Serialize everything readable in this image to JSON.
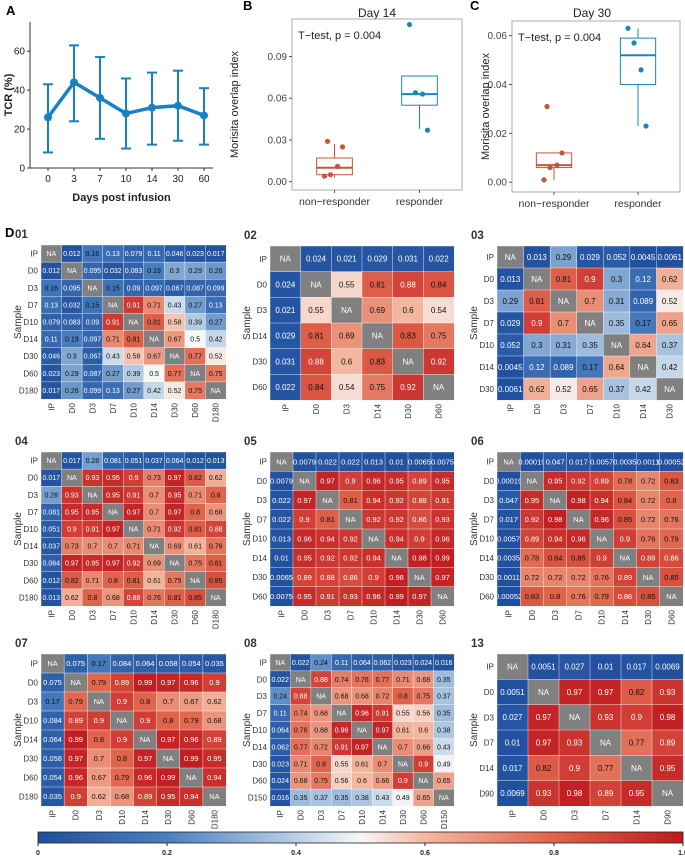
{
  "panel_letters": {
    "a": "A",
    "b": "B",
    "c": "C",
    "d": "D"
  },
  "chart_data": [
    {
      "id": "tcr",
      "type": "line",
      "title": "",
      "xlabel": "Days post infusion",
      "ylabel": "TCR (%)",
      "categories": [
        "0",
        "3",
        "7",
        "10",
        "14",
        "30",
        "60"
      ],
      "values": [
        26,
        44,
        36,
        28,
        31,
        32,
        27
      ],
      "error_low": [
        8,
        24,
        15,
        10,
        12,
        14,
        12
      ],
      "error_high": [
        43,
        63,
        57,
        46,
        49,
        50,
        41
      ],
      "ylim": [
        0,
        75
      ],
      "yticks": [
        "0",
        "20",
        "40",
        "60"
      ],
      "color": "#1a80c4"
    },
    {
      "id": "day14",
      "type": "box",
      "title": "Day 14",
      "ylabel": "Morisita overlap index",
      "annotation": "T−test, p = 0.004",
      "categories": [
        "non−responder",
        "responder"
      ],
      "yticks": [
        "0.00",
        "0.03",
        "0.06",
        "0.09"
      ],
      "ylim": [
        -0.006,
        0.117
      ],
      "groups": [
        {
          "name": "non−responder",
          "color": "#c8553b",
          "q1": 0.005,
          "median": 0.01,
          "q3": 0.017,
          "whisker_low": 0.003,
          "whisker_high": 0.027,
          "points": [
            0.004,
            0.005,
            0.011,
            0.025,
            0.029
          ]
        },
        {
          "name": "responder",
          "color": "#1b86b8",
          "q1": 0.055,
          "median": 0.063,
          "q3": 0.076,
          "whisker_low": 0.038,
          "whisker_high": 0.076,
          "points": [
            0.113,
            0.064,
            0.063,
            0.037
          ]
        }
      ]
    },
    {
      "id": "day30",
      "type": "box",
      "title": "Day 30",
      "ylabel": "Morisita overlap index",
      "annotation": "T−test, p = 0.004",
      "categories": [
        "non−responder",
        "responder"
      ],
      "yticks": [
        "0.00",
        "0.02",
        "0.04",
        "0.06"
      ],
      "ylim": [
        -0.004,
        0.066
      ],
      "groups": [
        {
          "name": "non−responder",
          "color": "#c8553b",
          "q1": 0.006,
          "median": 0.007,
          "q3": 0.012,
          "whisker_low": 0.001,
          "whisker_high": 0.012,
          "points": [
            0.001,
            0.006,
            0.007,
            0.012,
            0.031
          ]
        },
        {
          "name": "responder",
          "color": "#1b86b8",
          "q1": 0.04,
          "median": 0.052,
          "q3": 0.059,
          "whisker_low": 0.023,
          "whisker_high": 0.063,
          "points": [
            0.063,
            0.057,
            0.046,
            0.023
          ]
        }
      ]
    },
    {
      "id": "hm01",
      "type": "heatmap",
      "title": "01",
      "ylabel": "Sample",
      "labels": [
        "IP",
        "D0",
        "D3",
        "D7",
        "D10",
        "D14",
        "D30",
        "D60",
        "D180"
      ],
      "cells": [
        [
          "NA",
          "0.012",
          "0.16",
          "0.13",
          "0.079",
          "0.11",
          "0.046",
          "0.023",
          "0.017"
        ],
        [
          "0.012",
          "NA",
          "0.095",
          "0.032",
          "0.083",
          "0.19",
          "0.3",
          "0.29",
          "0.26"
        ],
        [
          "0.16",
          "0.095",
          "NA",
          "0.15",
          "0.09",
          "0.097",
          "0.067",
          "0.087",
          "0.099"
        ],
        [
          "0.13",
          "0.032",
          "0.15",
          "NA",
          "0.91",
          "0.71",
          "0.43",
          "0.27",
          "0.13"
        ],
        [
          "0.079",
          "0.083",
          "0.09",
          "0.91",
          "NA",
          "0.81",
          "0.58",
          "0.39",
          "0.27"
        ],
        [
          "0.11",
          "0.19",
          "0.097",
          "0.71",
          "0.81",
          "NA",
          "0.67",
          "0.5",
          "0.42"
        ],
        [
          "0.046",
          "0.3",
          "0.067",
          "0.43",
          "0.58",
          "0.67",
          "NA",
          "0.77",
          "0.52"
        ],
        [
          "0.023",
          "0.29",
          "0.087",
          "0.27",
          "0.39",
          "0.5",
          "0.77",
          "NA",
          "0.75"
        ],
        [
          "0.017",
          "0.26",
          "0.099",
          "0.13",
          "0.27",
          "0.42",
          "0.52",
          "0.75",
          "NA"
        ]
      ]
    },
    {
      "id": "hm02",
      "type": "heatmap",
      "title": "02",
      "ylabel": "Sample",
      "labels": [
        "IP",
        "D0",
        "D3",
        "D14",
        "D30",
        "D60"
      ],
      "cells": [
        [
          "NA",
          "0.024",
          "0.021",
          "0.029",
          "0.031",
          "0.022"
        ],
        [
          "0.024",
          "NA",
          "0.55",
          "0.81",
          "0.88",
          "0.84"
        ],
        [
          "0.021",
          "0.55",
          "NA",
          "0.69",
          "0.6",
          "0.54"
        ],
        [
          "0.029",
          "0.81",
          "0.69",
          "NA",
          "0.83",
          "0.75"
        ],
        [
          "0.031",
          "0.88",
          "0.6",
          "0.83",
          "NA",
          "0.92"
        ],
        [
          "0.022",
          "0.84",
          "0.54",
          "0.75",
          "0.92",
          "NA"
        ]
      ]
    },
    {
      "id": "hm03",
      "type": "heatmap",
      "title": "03",
      "ylabel": "Sample",
      "labels": [
        "IP",
        "D0",
        "D3",
        "D7",
        "D10",
        "D14",
        "D30"
      ],
      "cells": [
        [
          "NA",
          "0.013",
          "0.29",
          "0.029",
          "0.052",
          "0.0045",
          "0.0061"
        ],
        [
          "0.013",
          "NA",
          "0.81",
          "0.9",
          "0.3",
          "0.12",
          "0.62"
        ],
        [
          "0.29",
          "0.81",
          "NA",
          "0.7",
          "0.31",
          "0.089",
          "0.52"
        ],
        [
          "0.029",
          "0.9",
          "0.7",
          "NA",
          "0.35",
          "0.17",
          "0.65"
        ],
        [
          "0.052",
          "0.3",
          "0.31",
          "0.35",
          "NA",
          "0.64",
          "0.37"
        ],
        [
          "0.0045",
          "0.12",
          "0.089",
          "0.17",
          "0.64",
          "NA",
          "0.42"
        ],
        [
          "0.0061",
          "0.62",
          "0.52",
          "0.65",
          "0.37",
          "0.42",
          "NA"
        ]
      ]
    },
    {
      "id": "hm04",
      "type": "heatmap",
      "title": "04",
      "ylabel": "Sample",
      "labels": [
        "IP",
        "D0",
        "D3",
        "D7",
        "D10",
        "D14",
        "D30",
        "D60",
        "D180"
      ],
      "cells": [
        [
          "NA",
          "0.017",
          "0.28",
          "0.081",
          "0.051",
          "0.037",
          "0.064",
          "0.012",
          "0.013"
        ],
        [
          "0.017",
          "NA",
          "0.93",
          "0.95",
          "0.9",
          "0.73",
          "0.97",
          "0.82",
          "0.62"
        ],
        [
          "0.28",
          "0.93",
          "NA",
          "0.95",
          "0.91",
          "0.7",
          "0.95",
          "0.71",
          "0.8"
        ],
        [
          "0.081",
          "0.95",
          "0.95",
          "NA",
          "0.97",
          "0.7",
          "0.97",
          "0.8",
          "0.68"
        ],
        [
          "0.051",
          "0.9",
          "0.91",
          "0.97",
          "NA",
          "0.71",
          "0.92",
          "0.81",
          "0.88"
        ],
        [
          "0.037",
          "0.73",
          "0.7",
          "0.7",
          "0.71",
          "NA",
          "0.69",
          "0.61",
          "0.76"
        ],
        [
          "0.064",
          "0.97",
          "0.95",
          "0.97",
          "0.92",
          "0.69",
          "NA",
          "0.75",
          "0.81"
        ],
        [
          "0.012",
          "0.82",
          "0.71",
          "0.8",
          "0.81",
          "0.61",
          "0.75",
          "NA",
          "0.85"
        ],
        [
          "0.013",
          "0.62",
          "0.8",
          "0.68",
          "0.88",
          "0.76",
          "0.81",
          "0.85",
          "NA"
        ]
      ]
    },
    {
      "id": "hm05",
      "type": "heatmap",
      "title": "05",
      "ylabel": "Sample",
      "labels": [
        "IP",
        "D0",
        "D3",
        "D7",
        "D10",
        "D14",
        "D30",
        "D60"
      ],
      "cells": [
        [
          "NA",
          "0.0079",
          "0.022",
          "0.022",
          "0.013",
          "0.01",
          "0.0065",
          "0.0075"
        ],
        [
          "0.0079",
          "NA",
          "0.97",
          "0.9",
          "0.96",
          "0.95",
          "0.89",
          "0.95"
        ],
        [
          "0.022",
          "0.97",
          "NA",
          "0.81",
          "0.94",
          "0.92",
          "0.88",
          "0.91"
        ],
        [
          "0.022",
          "0.9",
          "0.81",
          "NA",
          "0.92",
          "0.92",
          "0.86",
          "0.93"
        ],
        [
          "0.013",
          "0.96",
          "0.94",
          "0.92",
          "NA",
          "0.94",
          "0.9",
          "0.96"
        ],
        [
          "0.01",
          "0.95",
          "0.92",
          "0.92",
          "0.94",
          "NA",
          "0.98",
          "0.99"
        ],
        [
          "0.0065",
          "0.89",
          "0.88",
          "0.86",
          "0.9",
          "0.98",
          "NA",
          "0.97"
        ],
        [
          "0.0075",
          "0.95",
          "0.91",
          "0.93",
          "0.96",
          "0.99",
          "0.97",
          "NA"
        ]
      ]
    },
    {
      "id": "hm06",
      "type": "heatmap",
      "title": "06",
      "ylabel": "Sample",
      "labels": [
        "IP",
        "D0",
        "D3",
        "D7",
        "D10",
        "D14",
        "D30",
        "D60"
      ],
      "cells": [
        [
          "NA",
          "0.00019",
          "0.047",
          "0.017",
          "0.0057",
          "0.0035",
          "0.0011",
          "0.00052"
        ],
        [
          "0.00019",
          "NA",
          "0.95",
          "0.92",
          "0.89",
          "0.78",
          "0.72",
          "0.83"
        ],
        [
          "0.047",
          "0.95",
          "NA",
          "0.98",
          "0.94",
          "0.84",
          "0.72",
          "0.8"
        ],
        [
          "0.017",
          "0.92",
          "0.98",
          "NA",
          "0.96",
          "0.85",
          "0.72",
          "0.76"
        ],
        [
          "0.0057",
          "0.89",
          "0.94",
          "0.96",
          "NA",
          "0.9",
          "0.76",
          "0.79"
        ],
        [
          "0.0035",
          "0.78",
          "0.84",
          "0.85",
          "0.9",
          "NA",
          "0.89",
          "0.86"
        ],
        [
          "0.0011",
          "0.72",
          "0.72",
          "0.72",
          "0.76",
          "0.89",
          "NA",
          "0.85"
        ],
        [
          "0.00052",
          "0.83",
          "0.8",
          "0.76",
          "0.79",
          "0.86",
          "0.85",
          "NA"
        ]
      ]
    },
    {
      "id": "hm07",
      "type": "heatmap",
      "title": "07",
      "ylabel": "Sample",
      "labels": [
        "IP",
        "D0",
        "D3",
        "D10",
        "D14",
        "D30",
        "D60",
        "D180"
      ],
      "cells": [
        [
          "NA",
          "0.075",
          "0.17",
          "0.084",
          "0.064",
          "0.058",
          "0.054",
          "0.035"
        ],
        [
          "0.075",
          "NA",
          "0.79",
          "0.89",
          "0.99",
          "0.97",
          "0.96",
          "0.9"
        ],
        [
          "0.17",
          "0.79",
          "NA",
          "0.9",
          "0.8",
          "0.7",
          "0.67",
          "0.62"
        ],
        [
          "0.084",
          "0.89",
          "0.9",
          "NA",
          "0.9",
          "0.8",
          "0.79",
          "0.68"
        ],
        [
          "0.064",
          "0.99",
          "0.8",
          "0.9",
          "NA",
          "0.97",
          "0.96",
          "0.89"
        ],
        [
          "0.058",
          "0.97",
          "0.7",
          "0.8",
          "0.97",
          "NA",
          "0.99",
          "0.95"
        ],
        [
          "0.054",
          "0.96",
          "0.67",
          "0.79",
          "0.96",
          "0.99",
          "NA",
          "0.94"
        ],
        [
          "0.035",
          "0.9",
          "0.62",
          "0.68",
          "0.89",
          "0.95",
          "0.94",
          "NA"
        ]
      ]
    },
    {
      "id": "hm08",
      "type": "heatmap",
      "title": "08",
      "ylabel": "Sample",
      "labels": [
        "IP",
        "D0",
        "D3",
        "D7",
        "D10",
        "D14",
        "D30",
        "D60",
        "D150"
      ],
      "cells": [
        [
          "NA",
          "0.022",
          "0.24",
          "0.11",
          "0.064",
          "0.062",
          "0.023",
          "0.024",
          "0.016"
        ],
        [
          "0.022",
          "NA",
          "0.88",
          "0.74",
          "0.76",
          "0.77",
          "0.71",
          "0.68",
          "0.35"
        ],
        [
          "0.24",
          "0.88",
          "NA",
          "0.68",
          "0.68",
          "0.72",
          "0.8",
          "0.75",
          "0.37"
        ],
        [
          "0.11",
          "0.74",
          "0.68",
          "NA",
          "0.96",
          "0.91",
          "0.55",
          "0.56",
          "0.35"
        ],
        [
          "0.064",
          "0.76",
          "0.68",
          "0.96",
          "NA",
          "0.97",
          "0.61",
          "0.6",
          "0.38"
        ],
        [
          "0.062",
          "0.77",
          "0.72",
          "0.91",
          "0.97",
          "NA",
          "0.7",
          "0.66",
          "0.43"
        ],
        [
          "0.023",
          "0.71",
          "0.8",
          "0.55",
          "0.61",
          "0.7",
          "NA",
          "0.9",
          "0.49"
        ],
        [
          "0.024",
          "0.68",
          "0.75",
          "0.56",
          "0.6",
          "0.66",
          "0.9",
          "NA",
          "0.65"
        ],
        [
          "0.016",
          "0.35",
          "0.37",
          "0.35",
          "0.38",
          "0.43",
          "0.49",
          "0.65",
          "NA"
        ]
      ]
    },
    {
      "id": "hm13",
      "type": "heatmap",
      "title": "13",
      "ylabel": "Sample",
      "labels": [
        "IP",
        "D0",
        "D3",
        "D7",
        "D14",
        "D90"
      ],
      "cells": [
        [
          "NA",
          "0.0051",
          "0.027",
          "0.01",
          "0.017",
          "0.0069"
        ],
        [
          "0.0051",
          "NA",
          "0.97",
          "0.97",
          "0.82",
          "0.93"
        ],
        [
          "0.027",
          "0.97",
          "NA",
          "0.93",
          "0.9",
          "0.98"
        ],
        [
          "0.01",
          "0.97",
          "0.93",
          "NA",
          "0.77",
          "0.89"
        ],
        [
          "0.017",
          "0.82",
          "0.9",
          "0.77",
          "NA",
          "0.95"
        ],
        [
          "0.0069",
          "0.93",
          "0.98",
          "0.89",
          "0.95",
          "NA"
        ]
      ]
    },
    {
      "id": "colorbar",
      "type": "colorbar",
      "ticks": [
        "0",
        "0.2",
        "0.4",
        "0.6",
        "0.8",
        "1.0"
      ],
      "colors": {
        "low": "#2166ac",
        "mid": "#f7f7f7",
        "high": "#c0191f",
        "na": "#808080"
      }
    }
  ]
}
